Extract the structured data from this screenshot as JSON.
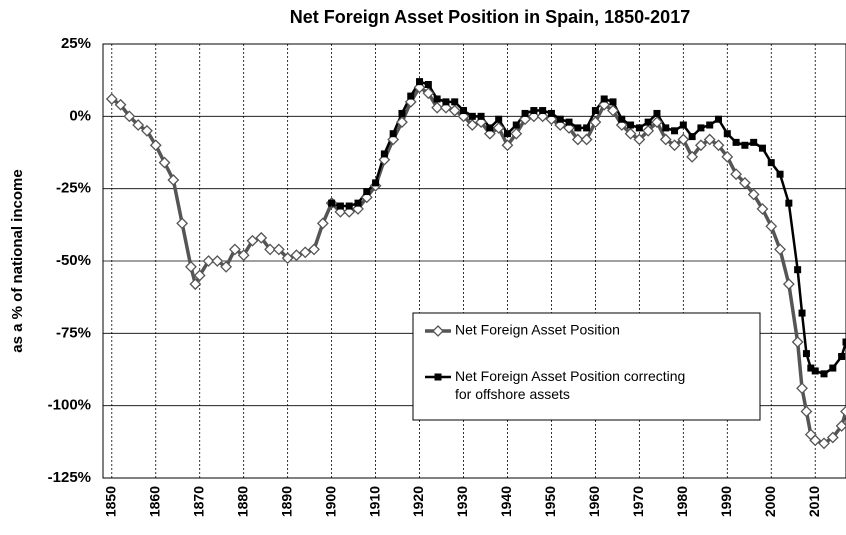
{
  "chart_data": {
    "type": "line",
    "title": "Net Foreign Asset Position in Spain, 1850-2017",
    "y_label": "as a % of national income",
    "x": [
      1850,
      1852,
      1854,
      1856,
      1858,
      1860,
      1862,
      1864,
      1866,
      1868,
      1869,
      1870,
      1872,
      1874,
      1876,
      1878,
      1880,
      1882,
      1884,
      1886,
      1888,
      1890,
      1892,
      1894,
      1896,
      1898,
      1900,
      1902,
      1904,
      1906,
      1908,
      1910,
      1912,
      1914,
      1916,
      1918,
      1920,
      1922,
      1924,
      1926,
      1928,
      1930,
      1932,
      1934,
      1936,
      1938,
      1940,
      1942,
      1944,
      1946,
      1948,
      1950,
      1952,
      1954,
      1956,
      1958,
      1960,
      1962,
      1964,
      1966,
      1968,
      1970,
      1972,
      1974,
      1976,
      1978,
      1980,
      1982,
      1984,
      1986,
      1988,
      1990,
      1992,
      1994,
      1996,
      1998,
      2000,
      2002,
      2004,
      2006,
      2007,
      2008,
      2009,
      2010,
      2012,
      2014,
      2016,
      2017
    ],
    "series": [
      {
        "name": "Net Foreign Asset Position",
        "color": "#555555",
        "marker": "diamond",
        "values": [
          6,
          4,
          0,
          -3,
          -5,
          -10,
          -16,
          -22,
          -37,
          -52,
          -58,
          -55,
          -50,
          -50,
          -52,
          -46,
          -48,
          -43,
          -42,
          -46,
          -46,
          -49,
          -48,
          -47,
          -46,
          -37,
          -30,
          -33,
          -33,
          -32,
          -28,
          -24,
          -15,
          -8,
          -2,
          5,
          10,
          8,
          3,
          3,
          2,
          0,
          -3,
          -2,
          -6,
          -4,
          -10,
          -6,
          -1,
          0,
          0,
          -1,
          -3,
          -4,
          -8,
          -8,
          -2,
          4,
          2,
          -3,
          -6,
          -8,
          -5,
          -2,
          -8,
          -10,
          -8,
          -14,
          -10,
          -8,
          -10,
          -14,
          -20,
          -23,
          -27,
          -32,
          -38,
          -46,
          -58,
          -78,
          -94,
          -102,
          -110,
          -112,
          -113,
          -111,
          -107,
          -102
        ]
      },
      {
        "name": "Net Foreign Asset Position correcting for offshore assets",
        "color": "#000000",
        "marker": "square",
        "values": [
          null,
          null,
          null,
          null,
          null,
          null,
          null,
          null,
          null,
          null,
          null,
          null,
          null,
          null,
          null,
          null,
          null,
          null,
          null,
          null,
          null,
          null,
          null,
          null,
          null,
          null,
          -30,
          -31,
          -31,
          -30,
          -26,
          -23,
          -13,
          -6,
          1,
          7,
          12,
          11,
          6,
          5,
          5,
          2,
          0,
          0,
          -4,
          -1,
          -6,
          -3,
          1,
          2,
          2,
          1,
          -1,
          -2,
          -4,
          -4,
          2,
          6,
          5,
          -1,
          -3,
          -4,
          -2,
          1,
          -4,
          -5,
          -3,
          -7,
          -4,
          -3,
          -1,
          -6,
          -9,
          -10,
          -9,
          -11,
          -16,
          -20,
          -30,
          -53,
          -68,
          -82,
          -87,
          -88,
          -89,
          -87,
          -83,
          -78
        ]
      }
    ],
    "xlim": [
      1848,
      2017
    ],
    "xticks": [
      1850,
      1860,
      1870,
      1880,
      1890,
      1900,
      1910,
      1920,
      1930,
      1940,
      1950,
      1960,
      1970,
      1980,
      1990,
      2000,
      2010
    ],
    "ylim": [
      -125,
      25
    ],
    "yticks": [
      {
        "value": 25,
        "label": "25%"
      },
      {
        "value": 0,
        "label": "0%"
      },
      {
        "value": -25,
        "label": "-25%"
      },
      {
        "value": -50,
        "label": "-50%"
      },
      {
        "value": -75,
        "label": "-75%"
      },
      {
        "value": -100,
        "label": "-100%"
      },
      {
        "value": -125,
        "label": "-125%"
      }
    ],
    "grid": true,
    "legend": "right"
  }
}
